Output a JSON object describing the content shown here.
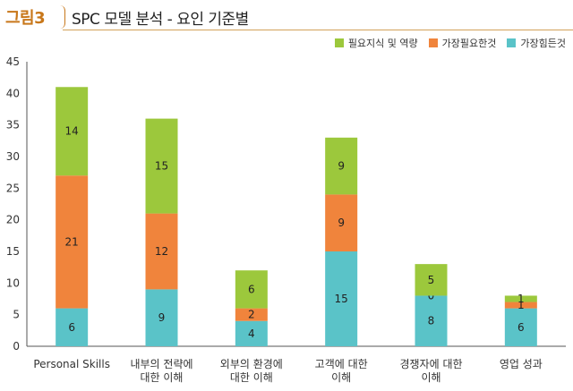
{
  "header": {
    "tag": "그림3",
    "title": "SPC 모델 분석 - 요인 기준별"
  },
  "colors": {
    "knowledge": "#9cc83c",
    "needed": "#f0843c",
    "hardest": "#5ac3c8",
    "accent": "#c8771a"
  },
  "chart_data": {
    "type": "bar",
    "stacked": true,
    "title": "SPC 모델 분석 - 요인 기준별",
    "categories": [
      [
        "Personal Skills"
      ],
      [
        "내부의 전략에",
        "대한 이해"
      ],
      [
        "외부의 환경에",
        "대한 이해"
      ],
      [
        "고객에 대한",
        "이해"
      ],
      [
        "경쟁자에 대한",
        "이해"
      ],
      [
        "영업 성과"
      ]
    ],
    "series": [
      {
        "name": "가장힘든것",
        "color": "#5ac3c8",
        "values": [
          6,
          9,
          4,
          15,
          8,
          6
        ]
      },
      {
        "name": "가장필요한것",
        "color": "#f0843c",
        "values": [
          21,
          12,
          2,
          9,
          0,
          1
        ]
      },
      {
        "name": "필요지식 및 역량",
        "color": "#9cc83c",
        "values": [
          14,
          15,
          6,
          9,
          5,
          1
        ]
      }
    ],
    "legend_order": [
      "필요지식 및 역량",
      "가장필요한것",
      "가장힘든것"
    ],
    "yticks": [
      0,
      5,
      10,
      15,
      20,
      25,
      30,
      35,
      40,
      45
    ],
    "ylim": [
      0,
      45
    ],
    "legend_position": "top-right",
    "grid": false
  }
}
